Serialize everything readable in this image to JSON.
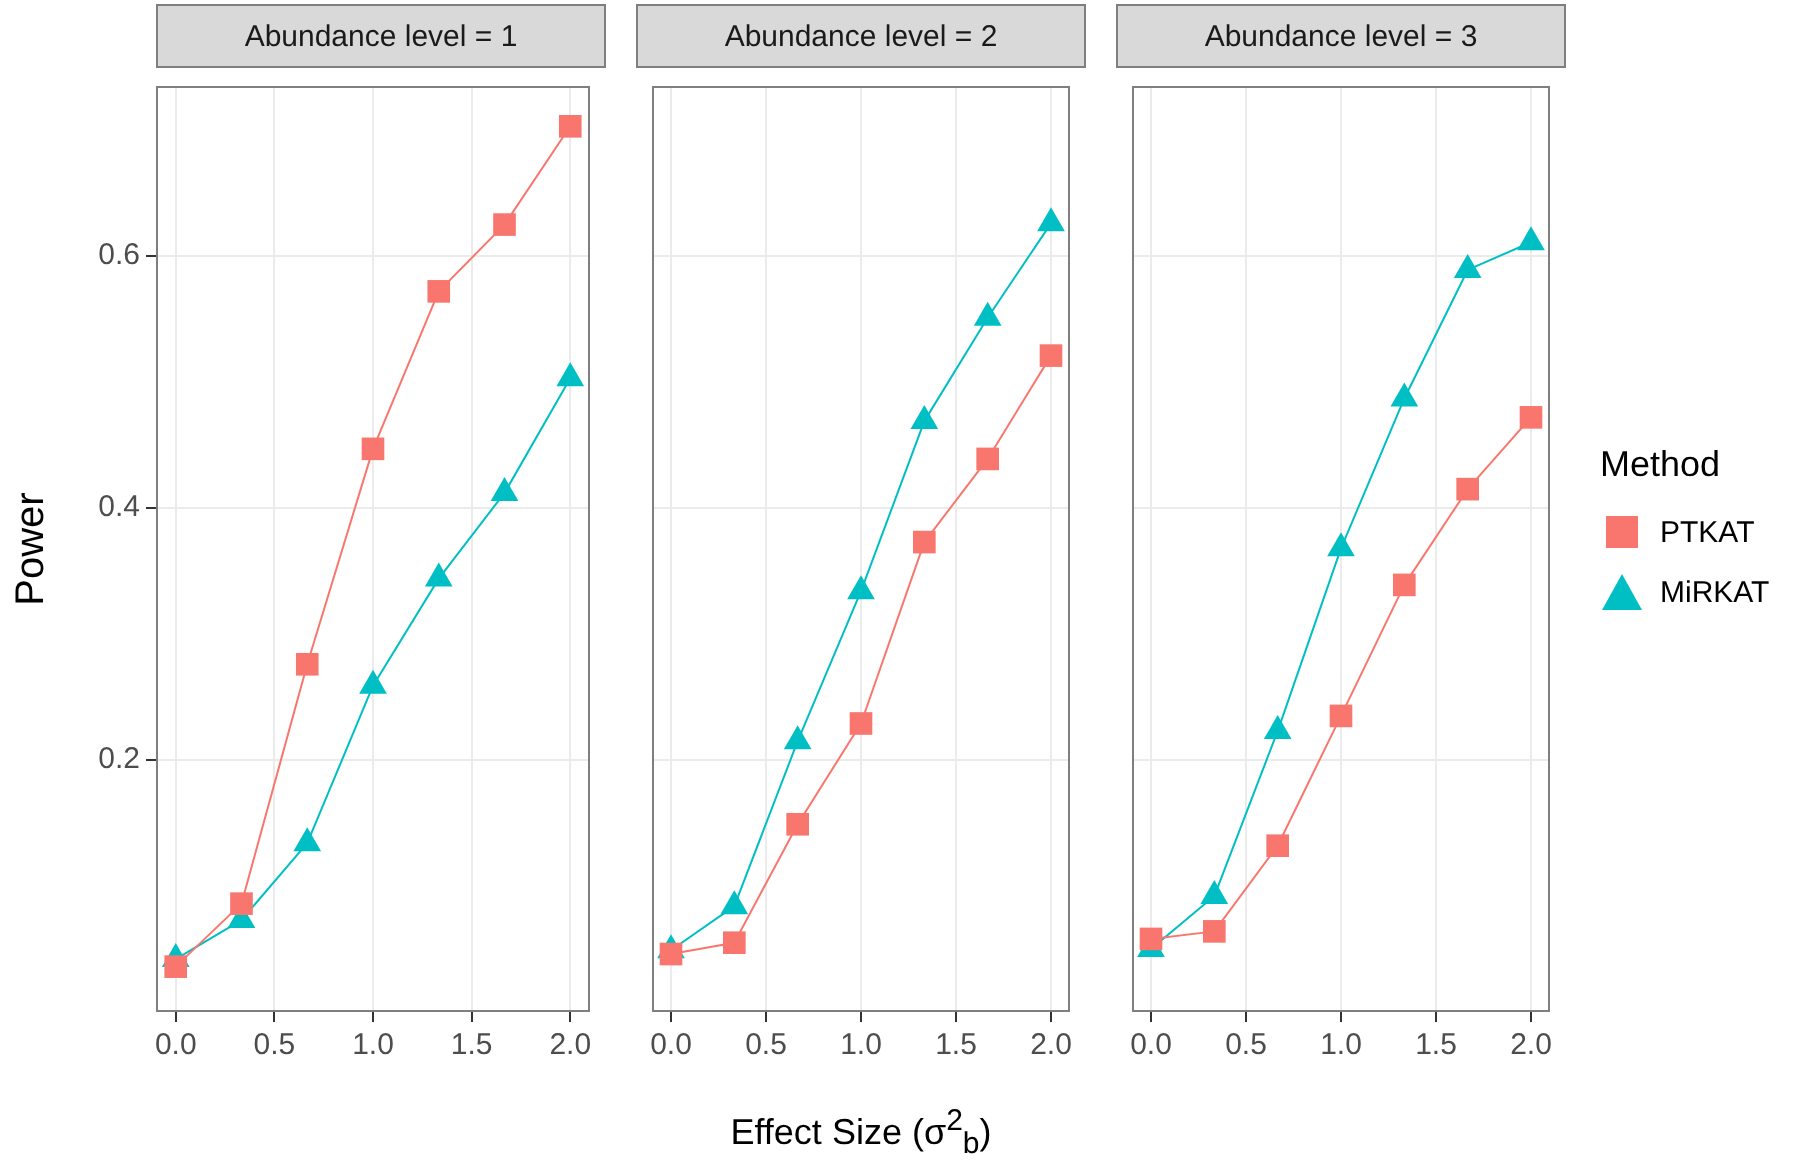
{
  "chart_data": [
    {
      "type": "line",
      "title": "Abundance level = 1",
      "ylabel": "Power",
      "x": [
        0,
        0.3333,
        0.6667,
        1,
        1.3333,
        1.6667,
        2
      ],
      "xlim": [
        -0.1,
        2.1
      ],
      "xticks": [
        {
          "value": 0,
          "label": "0.0"
        },
        {
          "value": 0.5,
          "label": "0.5"
        },
        {
          "value": 1,
          "label": "1.0"
        },
        {
          "value": 1.5,
          "label": "1.5"
        },
        {
          "value": 2,
          "label": "2.0"
        }
      ],
      "ylim": [
        0,
        0.735
      ],
      "yticks": [
        0.2,
        0.4,
        0.6
      ],
      "grid": true,
      "series": [
        {
          "color": "#f8766d",
          "marker": "square",
          "values": [
            0.036,
            0.086,
            0.276,
            0.447,
            0.572,
            0.625,
            0.703
          ]
        },
        {
          "color": "#00bfc4",
          "marker": "triangle",
          "values": [
            0.042,
            0.073,
            0.134,
            0.259,
            0.344,
            0.412,
            0.503
          ]
        }
      ]
    },
    {
      "type": "line",
      "title": "Abundance level = 2",
      "xlabel": "Effect Size (σ$^{2}$$_{b}$)",
      "tick_labels": "x",
      "x": [
        0,
        0.3333,
        0.6667,
        1,
        1.3333,
        1.6667,
        2
      ],
      "xlim": [
        -0.1,
        2.1
      ],
      "xticks": [
        {
          "value": 0,
          "label": "0.0"
        },
        {
          "value": 0.5,
          "label": "0.5"
        },
        {
          "value": 1,
          "label": "1.0"
        },
        {
          "value": 1.5,
          "label": "1.5"
        },
        {
          "value": 2,
          "label": "2.0"
        }
      ],
      "ylim": [
        0,
        0.735
      ],
      "yticks": [
        0.2,
        0.4,
        0.6
      ],
      "grid": true,
      "series": [
        {
          "color": "#f8766d",
          "marker": "square",
          "values": [
            0.046,
            0.055,
            0.149,
            0.229,
            0.373,
            0.439,
            0.521
          ]
        },
        {
          "color": "#00bfc4",
          "marker": "triangle",
          "values": [
            0.049,
            0.084,
            0.215,
            0.334,
            0.469,
            0.551,
            0.626
          ]
        }
      ]
    },
    {
      "type": "line",
      "title": "Abundance level = 3",
      "legend": "right",
      "legend_title": "Method",
      "tick_labels": "x",
      "x": [
        0,
        0.3333,
        0.6667,
        1,
        1.3333,
        1.6667,
        2
      ],
      "xlim": [
        -0.1,
        2.1
      ],
      "xticks": [
        {
          "value": 0,
          "label": "0.0"
        },
        {
          "value": 0.5,
          "label": "0.5"
        },
        {
          "value": 1,
          "label": "1.0"
        },
        {
          "value": 1.5,
          "label": "1.5"
        },
        {
          "value": 2,
          "label": "2.0"
        }
      ],
      "ylim": [
        0,
        0.735
      ],
      "yticks": [
        0.2,
        0.4,
        0.6
      ],
      "grid": true,
      "series": [
        {
          "name": "PTKAT",
          "color": "#f8766d",
          "marker": "square",
          "values": [
            0.058,
            0.064,
            0.132,
            0.235,
            0.339,
            0.415,
            0.472
          ]
        },
        {
          "name": "MiRKAT",
          "color": "#00bfc4",
          "marker": "triangle",
          "values": [
            0.05,
            0.092,
            0.223,
            0.368,
            0.487,
            0.589,
            0.611
          ]
        }
      ]
    }
  ]
}
